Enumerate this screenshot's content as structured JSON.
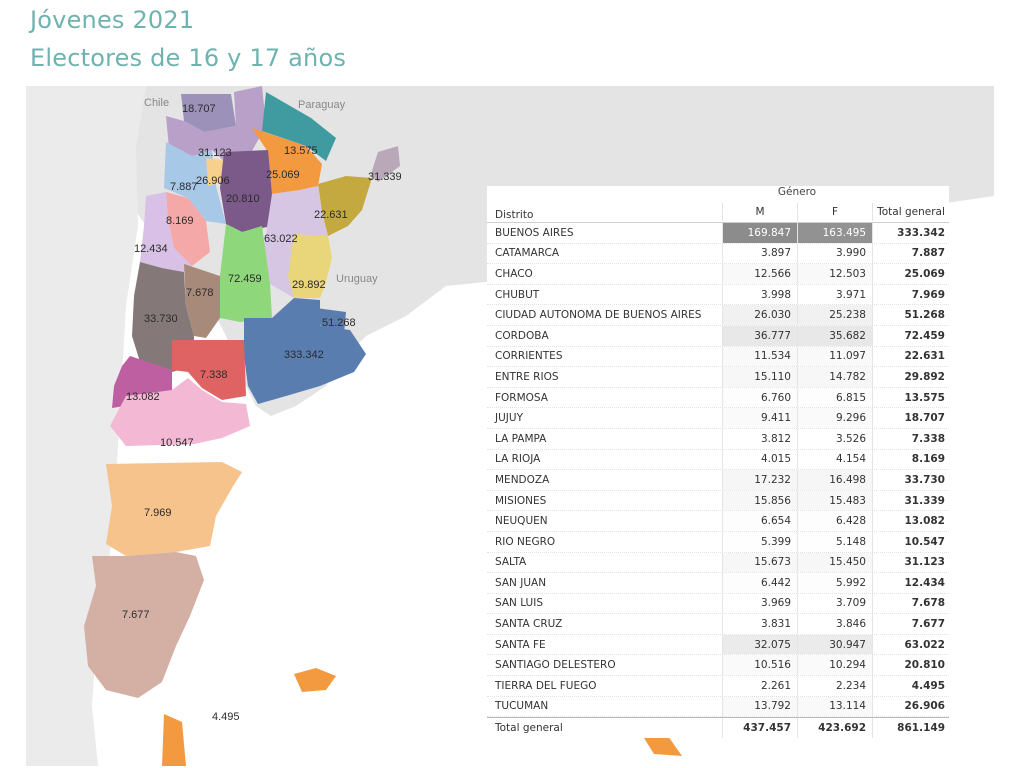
{
  "title": "Jóvenes 2021",
  "subtitle": "Electores de 16 y 17 años",
  "map_countries": {
    "chile": "Chile",
    "paraguay": "Paraguay",
    "uruguay": "Uruguay"
  },
  "map_labels": {
    "jujuy": "18.707",
    "salta": "31.123",
    "formosa": "13.575",
    "misiones": "31.339",
    "catamarca": "7.887",
    "tucuman": "26.906",
    "chaco": "25.069",
    "santiago": "20.810",
    "corrientes": "22.631",
    "la_rioja": "8.169",
    "san_juan": "12.434",
    "santa_fe": "63.022",
    "cordoba": "72.459",
    "entre_rios": "29.892",
    "san_luis": "7.678",
    "mendoza": "33.730",
    "caba": "51.268",
    "buenos_aires": "333.342",
    "la_pampa": "7.338",
    "neuquen": "13.082",
    "rio_negro": "10.547",
    "chubut": "7.969",
    "santa_cruz": "7.677",
    "tierra_del_fuego": "4.495"
  },
  "table": {
    "group_header": "Género",
    "col_distrito": "Distrito",
    "col_m": "M",
    "col_f": "F",
    "col_total": "Total general",
    "rows": [
      {
        "distrito": "BUENOS AIRES",
        "m": "169.847",
        "f": "163.495",
        "total": "333.342",
        "m_shade": 1.0,
        "f_shade": 0.95
      },
      {
        "distrito": "CATAMARCA",
        "m": "3.897",
        "f": "3.990",
        "total": "7.887",
        "m_shade": 0.0,
        "f_shade": 0.0
      },
      {
        "distrito": "CHACO",
        "m": "12.566",
        "f": "12.503",
        "total": "25.069",
        "m_shade": 0.05,
        "f_shade": 0.05
      },
      {
        "distrito": "CHUBUT",
        "m": "3.998",
        "f": "3.971",
        "total": "7.969",
        "m_shade": 0.0,
        "f_shade": 0.0
      },
      {
        "distrito": "CIUDAD AUTONOMA DE BUENOS AIRES",
        "m": "26.030",
        "f": "25.238",
        "total": "51.268",
        "m_shade": 0.12,
        "f_shade": 0.12
      },
      {
        "distrito": "CORDOBA",
        "m": "36.777",
        "f": "35.682",
        "total": "72.459",
        "m_shade": 0.2,
        "f_shade": 0.2
      },
      {
        "distrito": "CORRIENTES",
        "m": "11.534",
        "f": "11.097",
        "total": "22.631",
        "m_shade": 0.05,
        "f_shade": 0.05
      },
      {
        "distrito": "ENTRE RIOS",
        "m": "15.110",
        "f": "14.782",
        "total": "29.892",
        "m_shade": 0.07,
        "f_shade": 0.07
      },
      {
        "distrito": "FORMOSA",
        "m": "6.760",
        "f": "6.815",
        "total": "13.575",
        "m_shade": 0.02,
        "f_shade": 0.02
      },
      {
        "distrito": "JUJUY",
        "m": "9.411",
        "f": "9.296",
        "total": "18.707",
        "m_shade": 0.04,
        "f_shade": 0.04
      },
      {
        "distrito": "LA PAMPA",
        "m": "3.812",
        "f": "3.526",
        "total": "7.338",
        "m_shade": 0.0,
        "f_shade": 0.0
      },
      {
        "distrito": "LA RIOJA",
        "m": "4.015",
        "f": "4.154",
        "total": "8.169",
        "m_shade": 0.0,
        "f_shade": 0.0
      },
      {
        "distrito": "MENDOZA",
        "m": "17.232",
        "f": "16.498",
        "total": "33.730",
        "m_shade": 0.08,
        "f_shade": 0.08
      },
      {
        "distrito": "MISIONES",
        "m": "15.856",
        "f": "15.483",
        "total": "31.339",
        "m_shade": 0.07,
        "f_shade": 0.07
      },
      {
        "distrito": "NEUQUEN",
        "m": "6.654",
        "f": "6.428",
        "total": "13.082",
        "m_shade": 0.02,
        "f_shade": 0.02
      },
      {
        "distrito": "RIO NEGRO",
        "m": "5.399",
        "f": "5.148",
        "total": "10.547",
        "m_shade": 0.01,
        "f_shade": 0.01
      },
      {
        "distrito": "SALTA",
        "m": "15.673",
        "f": "15.450",
        "total": "31.123",
        "m_shade": 0.07,
        "f_shade": 0.07
      },
      {
        "distrito": "SAN JUAN",
        "m": "6.442",
        "f": "5.992",
        "total": "12.434",
        "m_shade": 0.02,
        "f_shade": 0.02
      },
      {
        "distrito": "SAN LUIS",
        "m": "3.969",
        "f": "3.709",
        "total": "7.678",
        "m_shade": 0.0,
        "f_shade": 0.0
      },
      {
        "distrito": "SANTA CRUZ",
        "m": "3.831",
        "f": "3.846",
        "total": "7.677",
        "m_shade": 0.0,
        "f_shade": 0.0
      },
      {
        "distrito": "SANTA FE",
        "m": "32.075",
        "f": "30.947",
        "total": "63.022",
        "m_shade": 0.17,
        "f_shade": 0.17
      },
      {
        "distrito": "SANTIAGO DELESTERO",
        "m": "10.516",
        "f": "10.294",
        "total": "20.810",
        "m_shade": 0.04,
        "f_shade": 0.04
      },
      {
        "distrito": "TIERRA DEL FUEGO",
        "m": "2.261",
        "f": "2.234",
        "total": "4.495",
        "m_shade": 0.0,
        "f_shade": 0.0
      },
      {
        "distrito": "TUCUMAN",
        "m": "13.792",
        "f": "13.114",
        "total": "26.906",
        "m_shade": 0.05,
        "f_shade": 0.05
      }
    ],
    "total_row": {
      "distrito": "Total general",
      "m": "437.457",
      "f": "423.692",
      "total": "861.149"
    }
  },
  "colors": {
    "title": "#6fb3b0",
    "land": "#e6e6e6",
    "ocean": "#ffffff",
    "cell_max_shade": "#8c8c8c"
  }
}
